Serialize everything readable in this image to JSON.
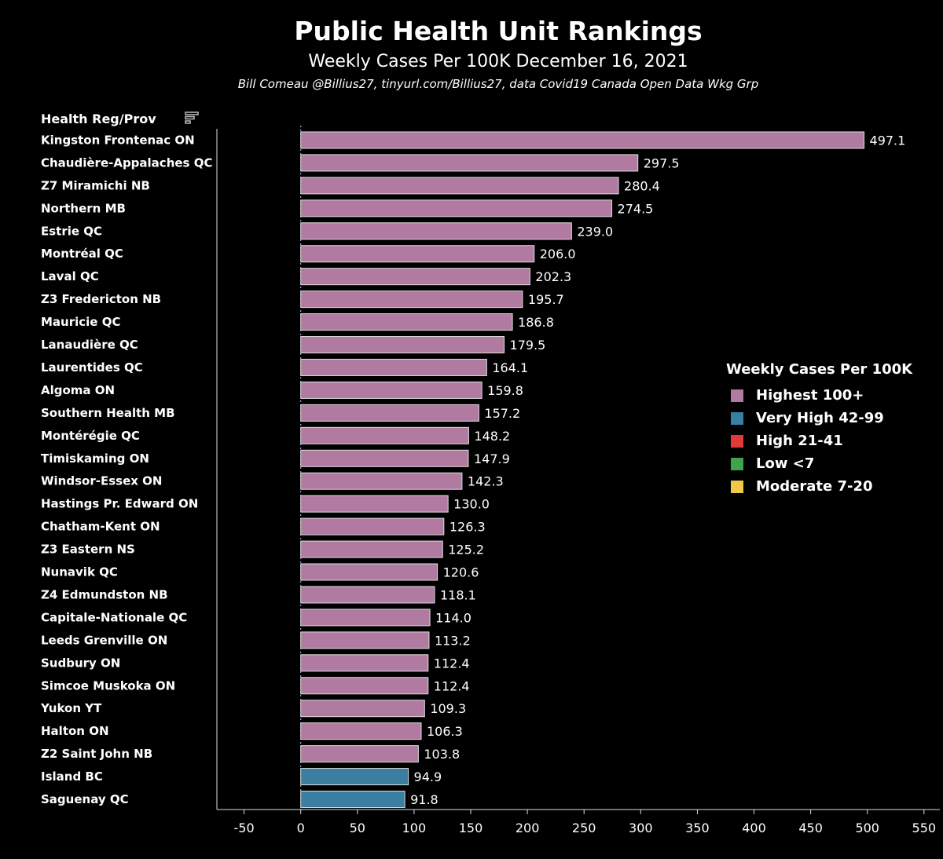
{
  "header": {
    "title": "Public Health Unit Rankings",
    "subtitle": "Weekly Cases Per 100K December 16, 2021",
    "credit": "Bill Comeau @Billius27, tinyurl.com/Billius27, data Covid19 Canada Open Data Wkg Grp"
  },
  "column_header": "Health Reg/Prov",
  "sort_icon": "sort-descending-icon",
  "legend": {
    "title": "Weekly Cases Per 100K",
    "items": [
      {
        "label": "Highest 100+",
        "color": "#b07aa1"
      },
      {
        "label": "Very High 42-99",
        "color": "#3a7ea1"
      },
      {
        "label": "High 21-41",
        "color": "#e03a3a"
      },
      {
        "label": "Low <7",
        "color": "#3fa34d"
      },
      {
        "label": "Moderate 7-20",
        "color": "#f1c84b"
      }
    ]
  },
  "chart_data": {
    "type": "bar",
    "orientation": "horizontal",
    "categories": [
      "Kingston Frontenac ON",
      "Chaudière-Appalaches QC",
      "Z7 Miramichi NB",
      "Northern MB",
      "Estrie QC",
      "Montréal QC",
      "Laval QC",
      "Z3 Fredericton NB",
      "Mauricie QC",
      "Lanaudière QC",
      "Laurentides QC",
      "Algoma ON",
      "Southern Health MB",
      "Montérégie QC",
      "Timiskaming ON",
      "Windsor-Essex ON",
      "Hastings Pr. Edward ON",
      "Chatham-Kent ON",
      "Z3 Eastern NS",
      "Nunavik QC",
      "Z4 Edmundston NB",
      "Capitale-Nationale QC",
      "Leeds Grenville ON",
      "Sudbury ON",
      "Simcoe Muskoka ON",
      "Yukon YT",
      "Halton ON",
      "Z2 Saint John NB",
      "Island BC",
      "Saguenay QC"
    ],
    "values": [
      497.1,
      297.5,
      280.4,
      274.5,
      239.0,
      206.0,
      202.3,
      195.7,
      186.8,
      179.5,
      164.1,
      159.8,
      157.2,
      148.2,
      147.9,
      142.3,
      130.0,
      126.3,
      125.2,
      120.6,
      118.1,
      114.0,
      113.2,
      112.4,
      112.4,
      109.3,
      106.3,
      103.8,
      94.9,
      91.8
    ],
    "value_labels": [
      "497.1",
      "297.5",
      "280.4",
      "274.5",
      "239.0",
      "206.0",
      "202.3",
      "195.7",
      "186.8",
      "179.5",
      "164.1",
      "159.8",
      "157.2",
      "148.2",
      "147.9",
      "142.3",
      "130.0",
      "126.3",
      "125.2",
      "120.6",
      "118.1",
      "114.0",
      "113.2",
      "112.4",
      "112.4",
      "109.3",
      "106.3",
      "103.8",
      "94.9",
      "91.8"
    ],
    "categories_color_group": [
      "Highest 100+",
      "Highest 100+",
      "Highest 100+",
      "Highest 100+",
      "Highest 100+",
      "Highest 100+",
      "Highest 100+",
      "Highest 100+",
      "Highest 100+",
      "Highest 100+",
      "Highest 100+",
      "Highest 100+",
      "Highest 100+",
      "Highest 100+",
      "Highest 100+",
      "Highest 100+",
      "Highest 100+",
      "Highest 100+",
      "Highest 100+",
      "Highest 100+",
      "Highest 100+",
      "Highest 100+",
      "Highest 100+",
      "Highest 100+",
      "Highest 100+",
      "Highest 100+",
      "Highest 100+",
      "Highest 100+",
      "Very High 42-99",
      "Very High 42-99"
    ],
    "x_ticks": [
      "-50",
      "0",
      "50",
      "100",
      "150",
      "200",
      "250",
      "300",
      "350",
      "400",
      "450",
      "500",
      "550"
    ],
    "xlim": [
      -74,
      564
    ],
    "zero_line": "dotted",
    "grid": false,
    "legend_position": "right"
  }
}
